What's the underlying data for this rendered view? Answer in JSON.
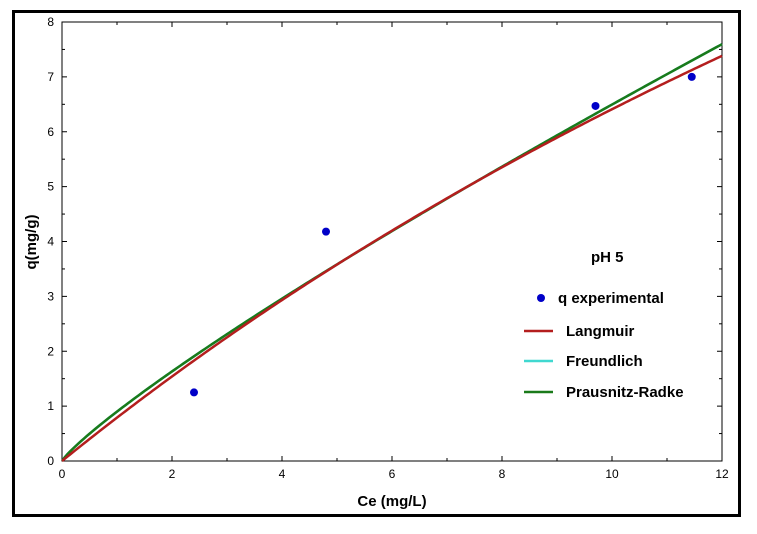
{
  "chart_data": {
    "type": "scatter",
    "title": "",
    "xlabel": "Ce (mg/L)",
    "ylabel": "q(mg/g)",
    "xlim": [
      0,
      12
    ],
    "ylim": [
      0,
      8
    ],
    "xticks": [
      0,
      2,
      4,
      6,
      8,
      10,
      12
    ],
    "yticks": [
      0,
      1,
      2,
      3,
      4,
      5,
      6,
      7,
      8
    ],
    "grid": false,
    "legend_title": "pH 5",
    "legend_position": "right",
    "series": [
      {
        "name": "q experimental",
        "kind": "points",
        "color": "#0000c8",
        "x": [
          2.4,
          4.8,
          9.7,
          11.45
        ],
        "y": [
          1.25,
          4.18,
          6.47,
          7.0
        ]
      },
      {
        "name": "Langmuir",
        "kind": "line",
        "color": "#b41e1e",
        "model": {
          "qmax": 30.6,
          "KL": 0.0265
        }
      },
      {
        "name": "Freundlich",
        "kind": "line",
        "color": "#40d8d0",
        "model": {
          "KF": 0.9,
          "n": 1.165
        }
      },
      {
        "name": "Prausnitz-Radke",
        "kind": "line",
        "color": "#1a7a1a",
        "model": {
          "KF": 0.9,
          "n": 1.165
        }
      }
    ]
  }
}
